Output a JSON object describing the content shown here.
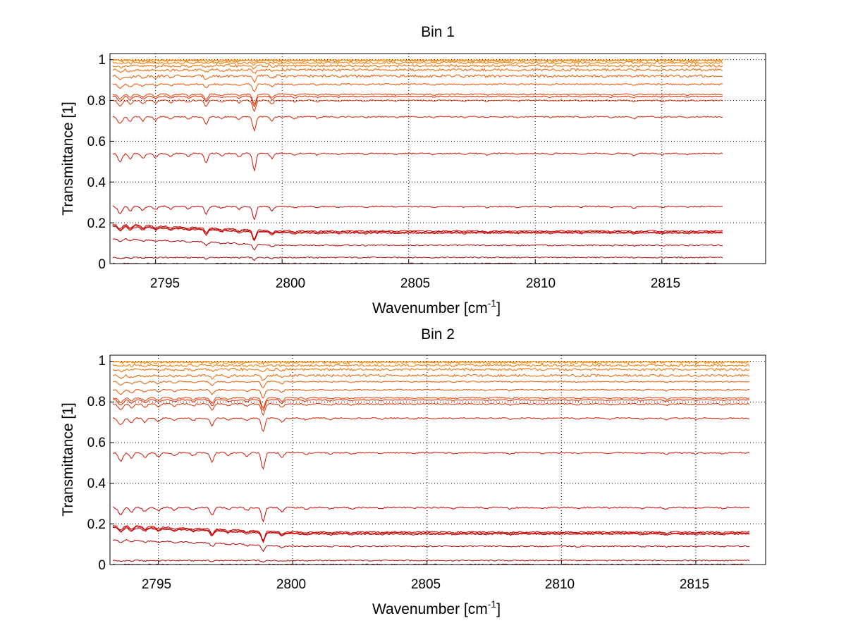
{
  "figure": {
    "panels": [
      {
        "title": "Bin 1",
        "xlabel": "Wavenumber [cm",
        "xlabel_sup": "-1",
        "xlabel_end": "]",
        "ylabel": "Transmittance [1]",
        "xticks": [
          "2795",
          "2800",
          "2805",
          "2810",
          "2815"
        ],
        "yticks": [
          "0",
          "0.2",
          "0.4",
          "0.6",
          "0.8",
          "1"
        ]
      },
      {
        "title": "Bin 2",
        "xlabel": "Wavenumber [cm",
        "xlabel_sup": "-1",
        "xlabel_end": "]",
        "ylabel": "Transmittance [1]",
        "xticks": [
          "2795",
          "2800",
          "2805",
          "2810",
          "2815"
        ],
        "yticks": [
          "0",
          "0.2",
          "0.4",
          "0.6",
          "0.8",
          "1"
        ]
      }
    ]
  },
  "chart_data": [
    {
      "type": "line",
      "title": "Bin 1",
      "xlabel": "Wavenumber [cm-1]",
      "ylabel": "Transmittance [1]",
      "xlim": [
        2793.2,
        2819.1
      ],
      "ylim": [
        0,
        1.03
      ],
      "xticks": [
        2795,
        2800,
        2805,
        2810,
        2815
      ],
      "yticks": [
        0,
        0.2,
        0.4,
        0.6,
        0.8,
        1
      ],
      "grid": true,
      "legend": "none",
      "x_end": 2817.4,
      "series": [
        {
          "baseline": 0.0,
          "color": "#8b0000"
        },
        {
          "baseline": 0.03,
          "color": "#a50000"
        },
        {
          "baseline": 0.09,
          "color": "#b30000"
        },
        {
          "baseline": 0.15,
          "color": "#bf0000"
        },
        {
          "baseline": 0.155,
          "color": "#c40000"
        },
        {
          "baseline": 0.16,
          "color": "#c80000"
        },
        {
          "baseline": 0.28,
          "color": "#cc0000"
        },
        {
          "baseline": 0.54,
          "color": "#d21500"
        },
        {
          "baseline": 0.72,
          "color": "#d82000"
        },
        {
          "baseline": 0.8,
          "color": "#dc3000"
        },
        {
          "baseline": 0.82,
          "color": "#e02800"
        },
        {
          "baseline": 0.83,
          "color": "#e63a00"
        },
        {
          "baseline": 0.88,
          "color": "#e84f00"
        },
        {
          "baseline": 0.92,
          "color": "#ec5a00"
        },
        {
          "baseline": 0.95,
          "color": "#ef6400"
        },
        {
          "baseline": 0.97,
          "color": "#f26e00"
        },
        {
          "baseline": 0.985,
          "color": "#f57800"
        },
        {
          "baseline": 0.995,
          "color": "#f88000"
        },
        {
          "baseline": 1.0,
          "color": "#ff8c00"
        }
      ]
    },
    {
      "type": "line",
      "title": "Bin 2",
      "xlabel": "Wavenumber [cm-1]",
      "ylabel": "Transmittance [1]",
      "xlim": [
        2793.2,
        2817.6
      ],
      "ylim": [
        0,
        1.03
      ],
      "xticks": [
        2795,
        2800,
        2805,
        2810,
        2815
      ],
      "yticks": [
        0,
        0.2,
        0.4,
        0.6,
        0.8,
        1
      ],
      "grid": true,
      "legend": "none",
      "x_end": 2817.0,
      "series": [
        {
          "baseline": 0.0,
          "color": "#8b0000"
        },
        {
          "baseline": 0.02,
          "color": "#a50000"
        },
        {
          "baseline": 0.09,
          "color": "#b30000"
        },
        {
          "baseline": 0.15,
          "color": "#bf0000"
        },
        {
          "baseline": 0.155,
          "color": "#c40000"
        },
        {
          "baseline": 0.16,
          "color": "#c80000"
        },
        {
          "baseline": 0.28,
          "color": "#cc0000"
        },
        {
          "baseline": 0.55,
          "color": "#d21500"
        },
        {
          "baseline": 0.72,
          "color": "#d82000"
        },
        {
          "baseline": 0.79,
          "color": "#dc3000"
        },
        {
          "baseline": 0.81,
          "color": "#e02800"
        },
        {
          "baseline": 0.82,
          "color": "#e63a00"
        },
        {
          "baseline": 0.86,
          "color": "#e84f00"
        },
        {
          "baseline": 0.9,
          "color": "#ec5a00"
        },
        {
          "baseline": 0.93,
          "color": "#ef6400"
        },
        {
          "baseline": 0.96,
          "color": "#f26e00"
        },
        {
          "baseline": 0.98,
          "color": "#f57800"
        },
        {
          "baseline": 0.995,
          "color": "#f88000"
        },
        {
          "baseline": 1.0,
          "color": "#ff8c00"
        }
      ]
    }
  ]
}
